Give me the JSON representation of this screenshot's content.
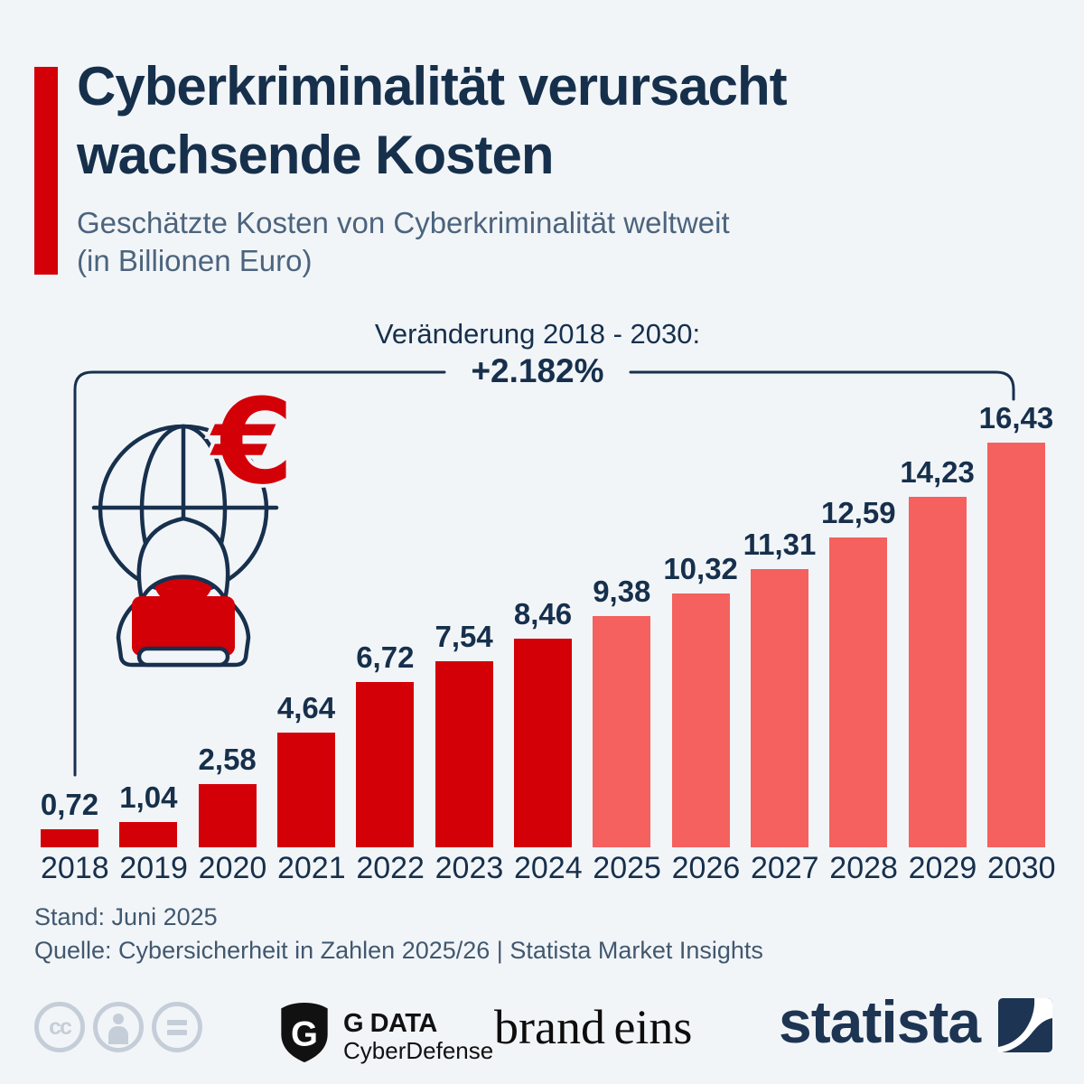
{
  "header": {
    "title_line1": "Cyberkriminalität verursacht",
    "title_line2": "wachsende Kosten",
    "subtitle_line1": "Geschätzte Kosten von Cyberkriminalität weltweit",
    "subtitle_line2": "(in Billionen Euro)"
  },
  "annotation": {
    "label": "Veränderung 2018 - 2030:",
    "value": "+2.182%"
  },
  "chart_data": {
    "type": "bar",
    "title": "Cyberkriminalität verursacht wachsende Kosten",
    "subtitle": "Geschätzte Kosten von Cyberkriminalität weltweit (in Billionen Euro)",
    "categories": [
      "2018",
      "2019",
      "2020",
      "2021",
      "2022",
      "2023",
      "2024",
      "2025",
      "2026",
      "2027",
      "2028",
      "2029",
      "2030"
    ],
    "values": [
      0.72,
      1.04,
      2.58,
      4.64,
      6.72,
      7.54,
      8.46,
      9.38,
      10.32,
      11.31,
      12.59,
      14.23,
      16.43
    ],
    "values_display": [
      "0,72",
      "1,04",
      "2,58",
      "4,64",
      "6,72",
      "7,54",
      "8,46",
      "9,38",
      "10,32",
      "11,31",
      "12,59",
      "14,23",
      "16,43"
    ],
    "forecast_start_index": 7,
    "annotation": "Veränderung 2018 - 2030: +2.182%",
    "unit": "Billionen Euro",
    "ylim": [
      0,
      16.43
    ],
    "grid": false,
    "colors": {
      "actual": "#d30008",
      "forecast": "#f4615e"
    }
  },
  "footer": {
    "stand": "Stand: Juni 2025",
    "quelle": "Quelle: Cybersicherheit in Zahlen 2025/26 | Statista Market Insights"
  },
  "logos": {
    "cc_letters": "cc",
    "gdata_name": "G DATA",
    "gdata_sub": "CyberDefense",
    "brandeins": "brand eins",
    "statista": "statista"
  },
  "colors": {
    "background": "#f2f5f8",
    "navy": "#16304c",
    "accent_red": "#d30008",
    "forecast_salmon": "#f4615e",
    "subtitle_gray": "#4c647d"
  }
}
